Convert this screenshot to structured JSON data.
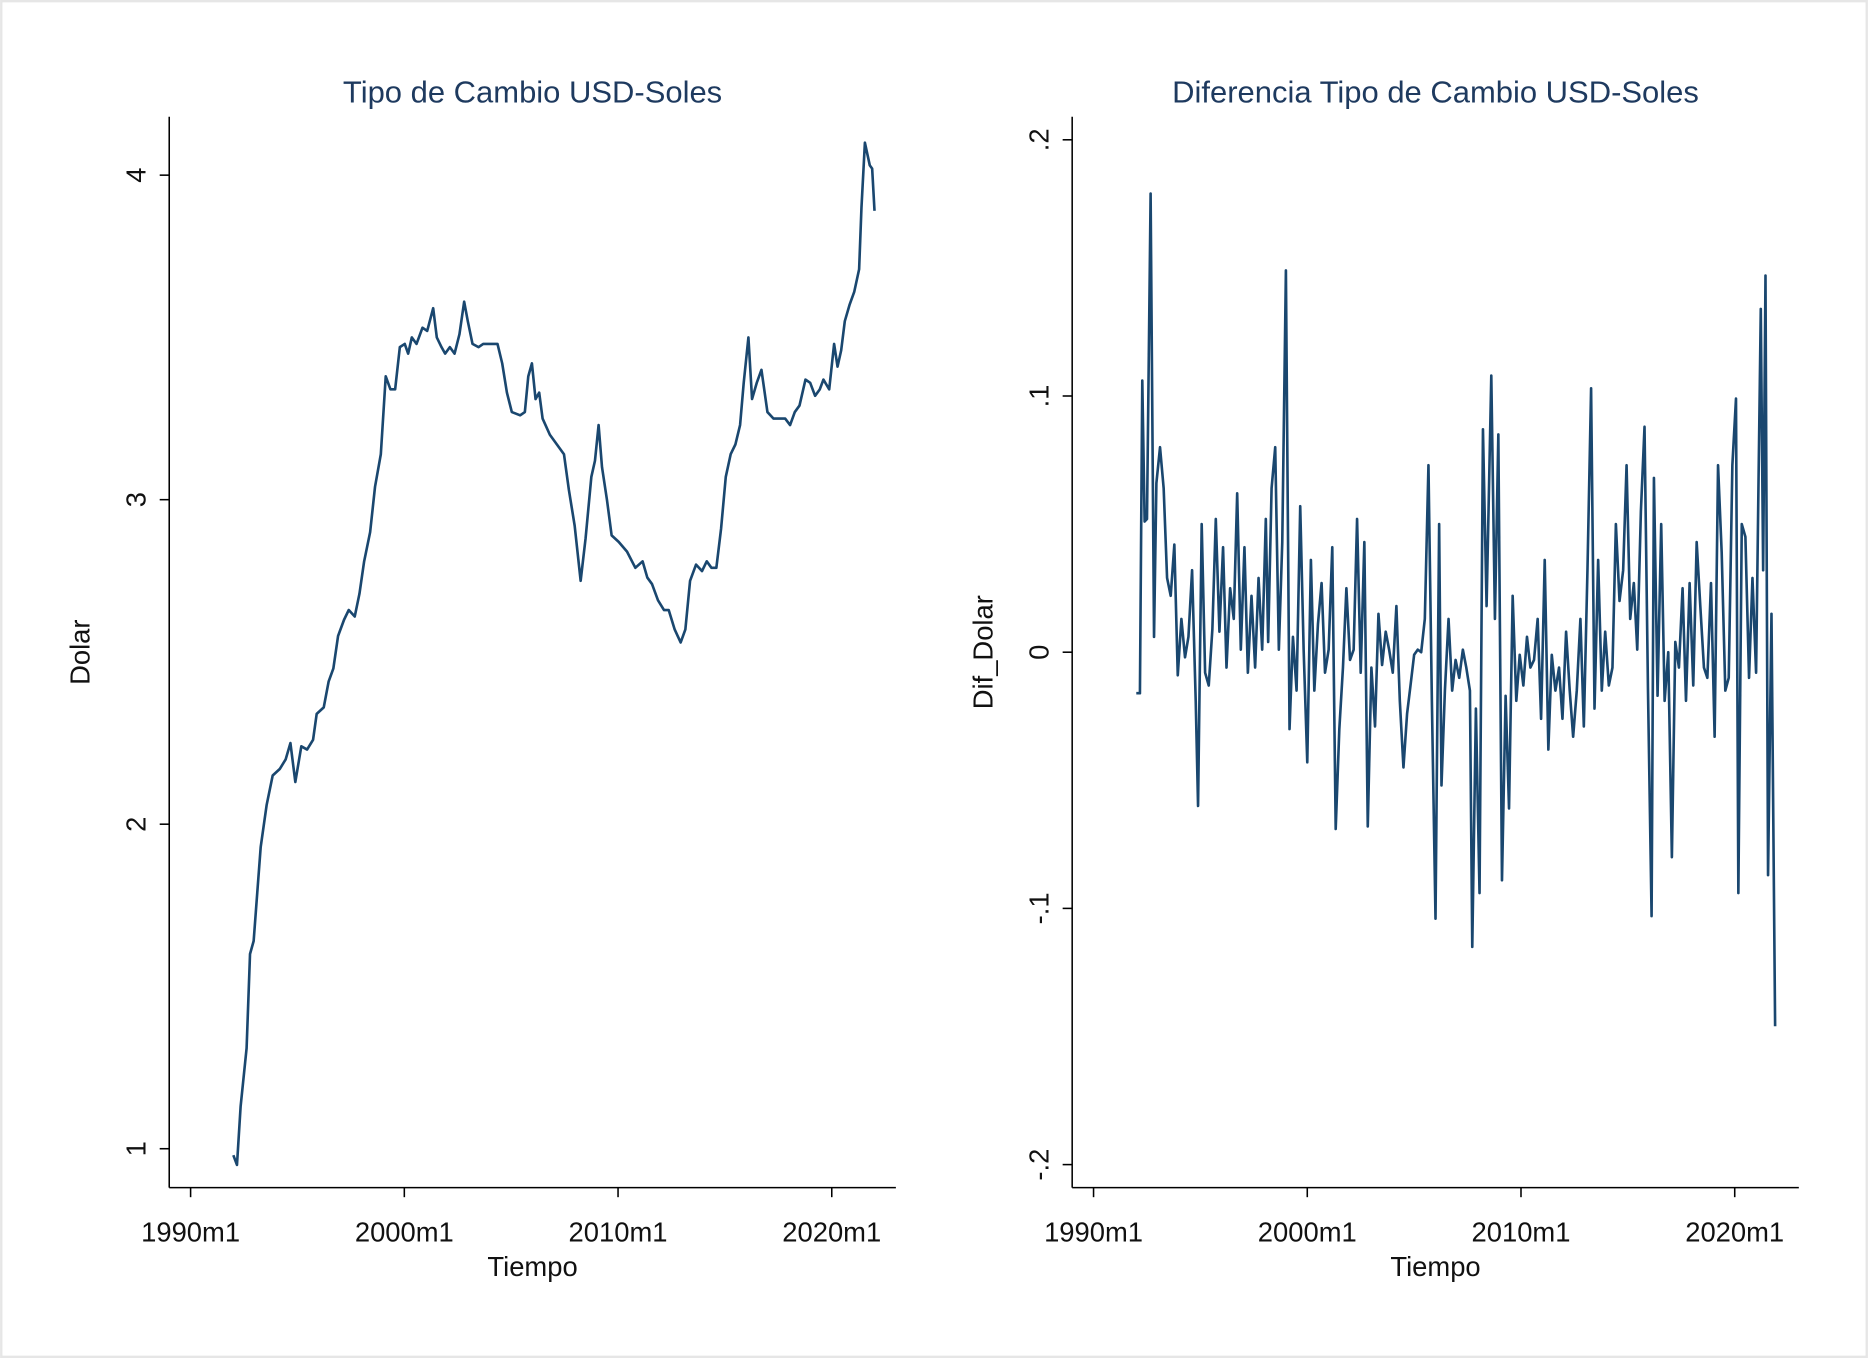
{
  "chart_data": [
    {
      "type": "line",
      "title": "Tipo de Cambio USD-Soles",
      "xlabel": "Tiempo",
      "ylabel": "Dolar",
      "color": "#1a476f",
      "grid": false,
      "xlim": [
        1989,
        2023
      ],
      "xticks": [
        {
          "value": 1990,
          "label": "1990m1"
        },
        {
          "value": 2000,
          "label": "2000m1"
        },
        {
          "value": 2010,
          "label": "2010m1"
        },
        {
          "value": 2020,
          "label": "2020m1"
        }
      ],
      "ylim": [
        0.88,
        4.18
      ],
      "yticks": [
        1,
        2,
        3,
        4
      ],
      "x": [
        1992.0,
        1992.17,
        1992.34,
        1992.62,
        1992.78,
        1992.95,
        1993.12,
        1993.28,
        1993.56,
        1993.84,
        1994.17,
        1994.45,
        1994.67,
        1994.9,
        1995.18,
        1995.45,
        1995.73,
        1995.9,
        1996.23,
        1996.46,
        1996.68,
        1996.9,
        1997.18,
        1997.4,
        1997.68,
        1997.9,
        1998.12,
        1998.4,
        1998.63,
        1998.9,
        1999.13,
        1999.35,
        1999.57,
        1999.79,
        2000.02,
        2000.18,
        2000.35,
        2000.57,
        2000.85,
        2001.07,
        2001.35,
        2001.52,
        2001.74,
        2001.91,
        2002.13,
        2002.35,
        2002.58,
        2002.8,
        2002.97,
        2003.19,
        2003.47,
        2003.69,
        2004.02,
        2004.36,
        2004.58,
        2004.8,
        2005.03,
        2005.42,
        2005.64,
        2005.8,
        2005.97,
        2006.14,
        2006.31,
        2006.47,
        2006.81,
        2007.14,
        2007.47,
        2007.7,
        2007.97,
        2008.25,
        2008.48,
        2008.75,
        2008.92,
        2009.09,
        2009.25,
        2009.48,
        2009.7,
        2010.03,
        2010.42,
        2010.81,
        2011.15,
        2011.37,
        2011.59,
        2011.87,
        2012.15,
        2012.37,
        2012.65,
        2012.93,
        2013.15,
        2013.37,
        2013.65,
        2013.93,
        2014.15,
        2014.37,
        2014.6,
        2014.82,
        2015.04,
        2015.27,
        2015.49,
        2015.71,
        2015.88,
        2016.1,
        2016.27,
        2016.49,
        2016.71,
        2016.99,
        2017.27,
        2017.55,
        2017.82,
        2018.05,
        2018.27,
        2018.49,
        2018.77,
        2018.99,
        2019.22,
        2019.44,
        2019.61,
        2019.88,
        2020.11,
        2020.27,
        2020.44,
        2020.61,
        2020.83,
        2021.05,
        2021.28,
        2021.39,
        2021.55,
        2021.78,
        2021.89,
        2022.0
      ],
      "values": [
        0.98,
        0.95,
        1.13,
        1.31,
        1.6,
        1.64,
        1.79,
        1.93,
        2.06,
        2.15,
        2.17,
        2.2,
        2.25,
        2.13,
        2.24,
        2.23,
        2.26,
        2.34,
        2.36,
        2.44,
        2.48,
        2.58,
        2.63,
        2.66,
        2.64,
        2.71,
        2.81,
        2.9,
        3.04,
        3.14,
        3.38,
        3.34,
        3.34,
        3.47,
        3.48,
        3.45,
        3.5,
        3.48,
        3.53,
        3.52,
        3.59,
        3.5,
        3.47,
        3.45,
        3.47,
        3.45,
        3.51,
        3.61,
        3.55,
        3.48,
        3.47,
        3.48,
        3.48,
        3.48,
        3.42,
        3.33,
        3.27,
        3.26,
        3.27,
        3.38,
        3.42,
        3.31,
        3.33,
        3.25,
        3.2,
        3.17,
        3.14,
        3.03,
        2.92,
        2.75,
        2.88,
        3.07,
        3.12,
        3.23,
        3.1,
        3.0,
        2.89,
        2.87,
        2.84,
        2.79,
        2.81,
        2.76,
        2.74,
        2.69,
        2.66,
        2.66,
        2.6,
        2.56,
        2.6,
        2.75,
        2.8,
        2.78,
        2.81,
        2.79,
        2.79,
        2.91,
        3.07,
        3.14,
        3.17,
        3.23,
        3.36,
        3.5,
        3.31,
        3.36,
        3.4,
        3.27,
        3.25,
        3.25,
        3.25,
        3.23,
        3.27,
        3.29,
        3.37,
        3.36,
        3.32,
        3.34,
        3.37,
        3.34,
        3.48,
        3.41,
        3.46,
        3.55,
        3.6,
        3.64,
        3.71,
        3.9,
        4.1,
        4.03,
        4.02,
        3.89
      ]
    },
    {
      "type": "line",
      "title": "Diferencia Tipo de Cambio USD-Soles",
      "xlabel": "Tiempo",
      "ylabel": "Dif_Dolar",
      "color": "#1a476f",
      "grid": false,
      "xlim": [
        1989,
        2023
      ],
      "xticks": [
        {
          "value": 1990,
          "label": "1990m1"
        },
        {
          "value": 2000,
          "label": "2000m1"
        },
        {
          "value": 2010,
          "label": "2010m1"
        },
        {
          "value": 2020,
          "label": "2020m1"
        }
      ],
      "ylim": [
        -0.209,
        0.209
      ],
      "yticks": [
        {
          "value": -0.2,
          "label": "-.2"
        },
        {
          "value": -0.1,
          "label": "-.1"
        },
        0,
        {
          "value": 0.1,
          "label": ".1"
        },
        {
          "value": 0.2,
          "label": ".2"
        }
      ],
      "x": [
        1992.0,
        1992.17,
        1992.28,
        1992.39,
        1992.5,
        1992.67,
        1992.83,
        1992.94,
        1993.11,
        1993.28,
        1993.44,
        1993.61,
        1993.78,
        1993.94,
        1994.11,
        1994.28,
        1994.44,
        1994.61,
        1994.78,
        1994.89,
        1995.06,
        1995.22,
        1995.39,
        1995.56,
        1995.72,
        1995.89,
        1996.06,
        1996.22,
        1996.39,
        1996.56,
        1996.72,
        1996.89,
        1997.06,
        1997.22,
        1997.39,
        1997.56,
        1997.72,
        1997.89,
        1998.06,
        1998.17,
        1998.33,
        1998.5,
        1998.67,
        1998.83,
        1999.0,
        1999.17,
        1999.33,
        1999.5,
        1999.67,
        1999.83,
        2000.0,
        2000.17,
        2000.33,
        2000.5,
        2000.67,
        2000.83,
        2001.0,
        2001.17,
        2001.33,
        2001.5,
        2001.67,
        2001.83,
        2002.0,
        2002.17,
        2002.33,
        2002.5,
        2002.67,
        2002.83,
        2003.0,
        2003.17,
        2003.33,
        2003.5,
        2003.67,
        2003.83,
        2004.0,
        2004.17,
        2004.33,
        2004.5,
        2004.67,
        2004.83,
        2005.0,
        2005.17,
        2005.33,
        2005.5,
        2005.67,
        2005.83,
        2006.0,
        2006.17,
        2006.28,
        2006.44,
        2006.61,
        2006.78,
        2006.94,
        2007.11,
        2007.28,
        2007.44,
        2007.61,
        2007.72,
        2007.89,
        2008.06,
        2008.22,
        2008.39,
        2008.61,
        2008.78,
        2008.94,
        2009.11,
        2009.28,
        2009.44,
        2009.61,
        2009.78,
        2009.94,
        2010.11,
        2010.28,
        2010.44,
        2010.61,
        2010.78,
        2010.94,
        2011.11,
        2011.28,
        2011.44,
        2011.61,
        2011.78,
        2011.94,
        2012.11,
        2012.28,
        2012.44,
        2012.61,
        2012.78,
        2012.94,
        2013.11,
        2013.28,
        2013.44,
        2013.61,
        2013.78,
        2013.94,
        2014.11,
        2014.28,
        2014.44,
        2014.61,
        2014.78,
        2014.94,
        2015.11,
        2015.28,
        2015.44,
        2015.61,
        2015.78,
        2015.94,
        2016.11,
        2016.22,
        2016.39,
        2016.56,
        2016.72,
        2016.89,
        2017.06,
        2017.22,
        2017.39,
        2017.56,
        2017.72,
        2017.89,
        2018.06,
        2018.22,
        2018.39,
        2018.56,
        2018.72,
        2018.89,
        2019.06,
        2019.22,
        2019.39,
        2019.56,
        2019.72,
        2019.89,
        2020.06,
        2020.17,
        2020.33,
        2020.5,
        2020.67,
        2020.83,
        2021.0,
        2021.11,
        2021.22,
        2021.33,
        2021.44,
        2021.56,
        2021.72,
        2021.89
      ],
      "values": [
        -0.016,
        -0.016,
        0.106,
        0.051,
        0.052,
        0.179,
        0.006,
        0.066,
        0.08,
        0.064,
        0.029,
        0.022,
        0.042,
        -0.009,
        0.013,
        -0.002,
        0.006,
        0.032,
        -0.019,
        -0.06,
        0.05,
        -0.008,
        -0.013,
        0.009,
        0.052,
        0.008,
        0.041,
        -0.006,
        0.025,
        0.013,
        0.062,
        0.001,
        0.041,
        -0.008,
        0.022,
        -0.006,
        0.029,
        0.001,
        0.052,
        0.004,
        0.064,
        0.08,
        0.001,
        0.043,
        0.149,
        -0.03,
        0.006,
        -0.015,
        0.057,
        0.001,
        -0.043,
        0.036,
        -0.015,
        0.011,
        0.027,
        -0.008,
        0.001,
        0.041,
        -0.069,
        -0.03,
        -0.006,
        0.025,
        -0.003,
        0.001,
        0.052,
        -0.008,
        0.043,
        -0.068,
        -0.006,
        -0.029,
        0.015,
        -0.005,
        0.008,
        0.001,
        -0.008,
        0.018,
        -0.019,
        -0.045,
        -0.024,
        -0.013,
        -0.001,
        0.001,
        0.0,
        0.013,
        0.073,
        -0.019,
        -0.104,
        0.05,
        -0.052,
        -0.015,
        0.013,
        -0.015,
        -0.003,
        -0.01,
        0.001,
        -0.006,
        -0.015,
        -0.115,
        -0.022,
        -0.094,
        0.087,
        0.018,
        0.108,
        0.013,
        0.085,
        -0.089,
        -0.017,
        -0.061,
        0.022,
        -0.019,
        -0.001,
        -0.013,
        0.006,
        -0.006,
        -0.003,
        0.013,
        -0.026,
        0.036,
        -0.038,
        -0.001,
        -0.015,
        -0.006,
        -0.026,
        0.008,
        -0.015,
        -0.033,
        -0.015,
        0.013,
        -0.029,
        0.032,
        0.103,
        -0.022,
        0.036,
        -0.015,
        0.008,
        -0.013,
        -0.006,
        0.05,
        0.02,
        0.032,
        0.073,
        0.013,
        0.027,
        0.001,
        0.055,
        0.088,
        -0.014,
        -0.103,
        0.068,
        -0.017,
        0.05,
        -0.019,
        0.0,
        -0.08,
        0.004,
        -0.006,
        0.025,
        -0.019,
        0.027,
        -0.013,
        0.043,
        0.018,
        -0.006,
        -0.01,
        0.027,
        -0.033,
        0.073,
        0.039,
        -0.015,
        -0.01,
        0.073,
        0.099,
        -0.094,
        0.05,
        0.045,
        -0.01,
        0.029,
        -0.008,
        0.064,
        0.134,
        0.032,
        0.147,
        -0.087,
        0.015,
        -0.146
      ]
    }
  ]
}
